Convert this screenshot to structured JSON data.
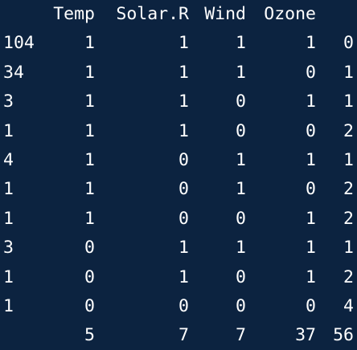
{
  "table": {
    "headers": [
      "Temp",
      "Solar.R",
      "Wind",
      "Ozone"
    ],
    "rows": [
      {
        "count": "104",
        "values": [
          "1",
          "1",
          "1",
          "1",
          "0"
        ]
      },
      {
        "count": "34",
        "values": [
          "1",
          "1",
          "1",
          "0",
          "1"
        ]
      },
      {
        "count": "3",
        "values": [
          "1",
          "1",
          "0",
          "1",
          "1"
        ]
      },
      {
        "count": "1",
        "values": [
          "1",
          "1",
          "0",
          "0",
          "2"
        ]
      },
      {
        "count": "4",
        "values": [
          "1",
          "0",
          "1",
          "1",
          "1"
        ]
      },
      {
        "count": "1",
        "values": [
          "1",
          "0",
          "1",
          "0",
          "2"
        ]
      },
      {
        "count": "1",
        "values": [
          "1",
          "0",
          "0",
          "1",
          "2"
        ]
      },
      {
        "count": "3",
        "values": [
          "0",
          "1",
          "1",
          "1",
          "1"
        ]
      },
      {
        "count": "1",
        "values": [
          "0",
          "1",
          "0",
          "1",
          "2"
        ]
      },
      {
        "count": "1",
        "values": [
          "0",
          "0",
          "0",
          "0",
          "4"
        ]
      }
    ],
    "totals": [
      "",
      "5",
      "7",
      "7",
      "37",
      "56"
    ]
  }
}
